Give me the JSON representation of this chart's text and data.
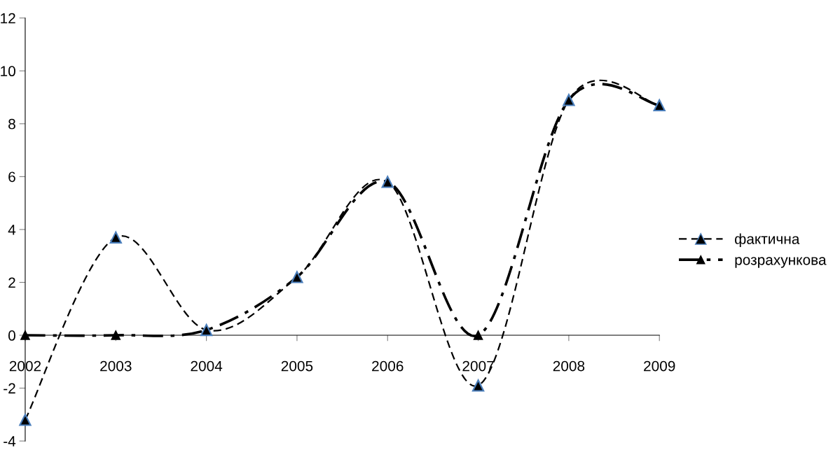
{
  "chart_data": {
    "type": "line",
    "categories": [
      "2002",
      "2003",
      "2004",
      "2005",
      "2006",
      "2007",
      "2008",
      "2009"
    ],
    "series": [
      {
        "name": "фактична",
        "color": "#000000",
        "line_style": "dashed",
        "values": [
          -3.2,
          3.7,
          0.2,
          2.2,
          5.8,
          -1.9,
          8.9,
          8.7
        ]
      },
      {
        "name": "розрахункова",
        "color": "#000000",
        "line_style": "dashdot",
        "values": [
          0,
          0,
          0.2,
          2.2,
          5.8,
          0,
          8.9,
          8.7
        ]
      }
    ],
    "marker": "triangle",
    "ylim": [
      -4,
      12
    ],
    "yticks": [
      -4,
      -2,
      0,
      2,
      4,
      6,
      8,
      10,
      12
    ],
    "grid": false,
    "legend": "right"
  }
}
